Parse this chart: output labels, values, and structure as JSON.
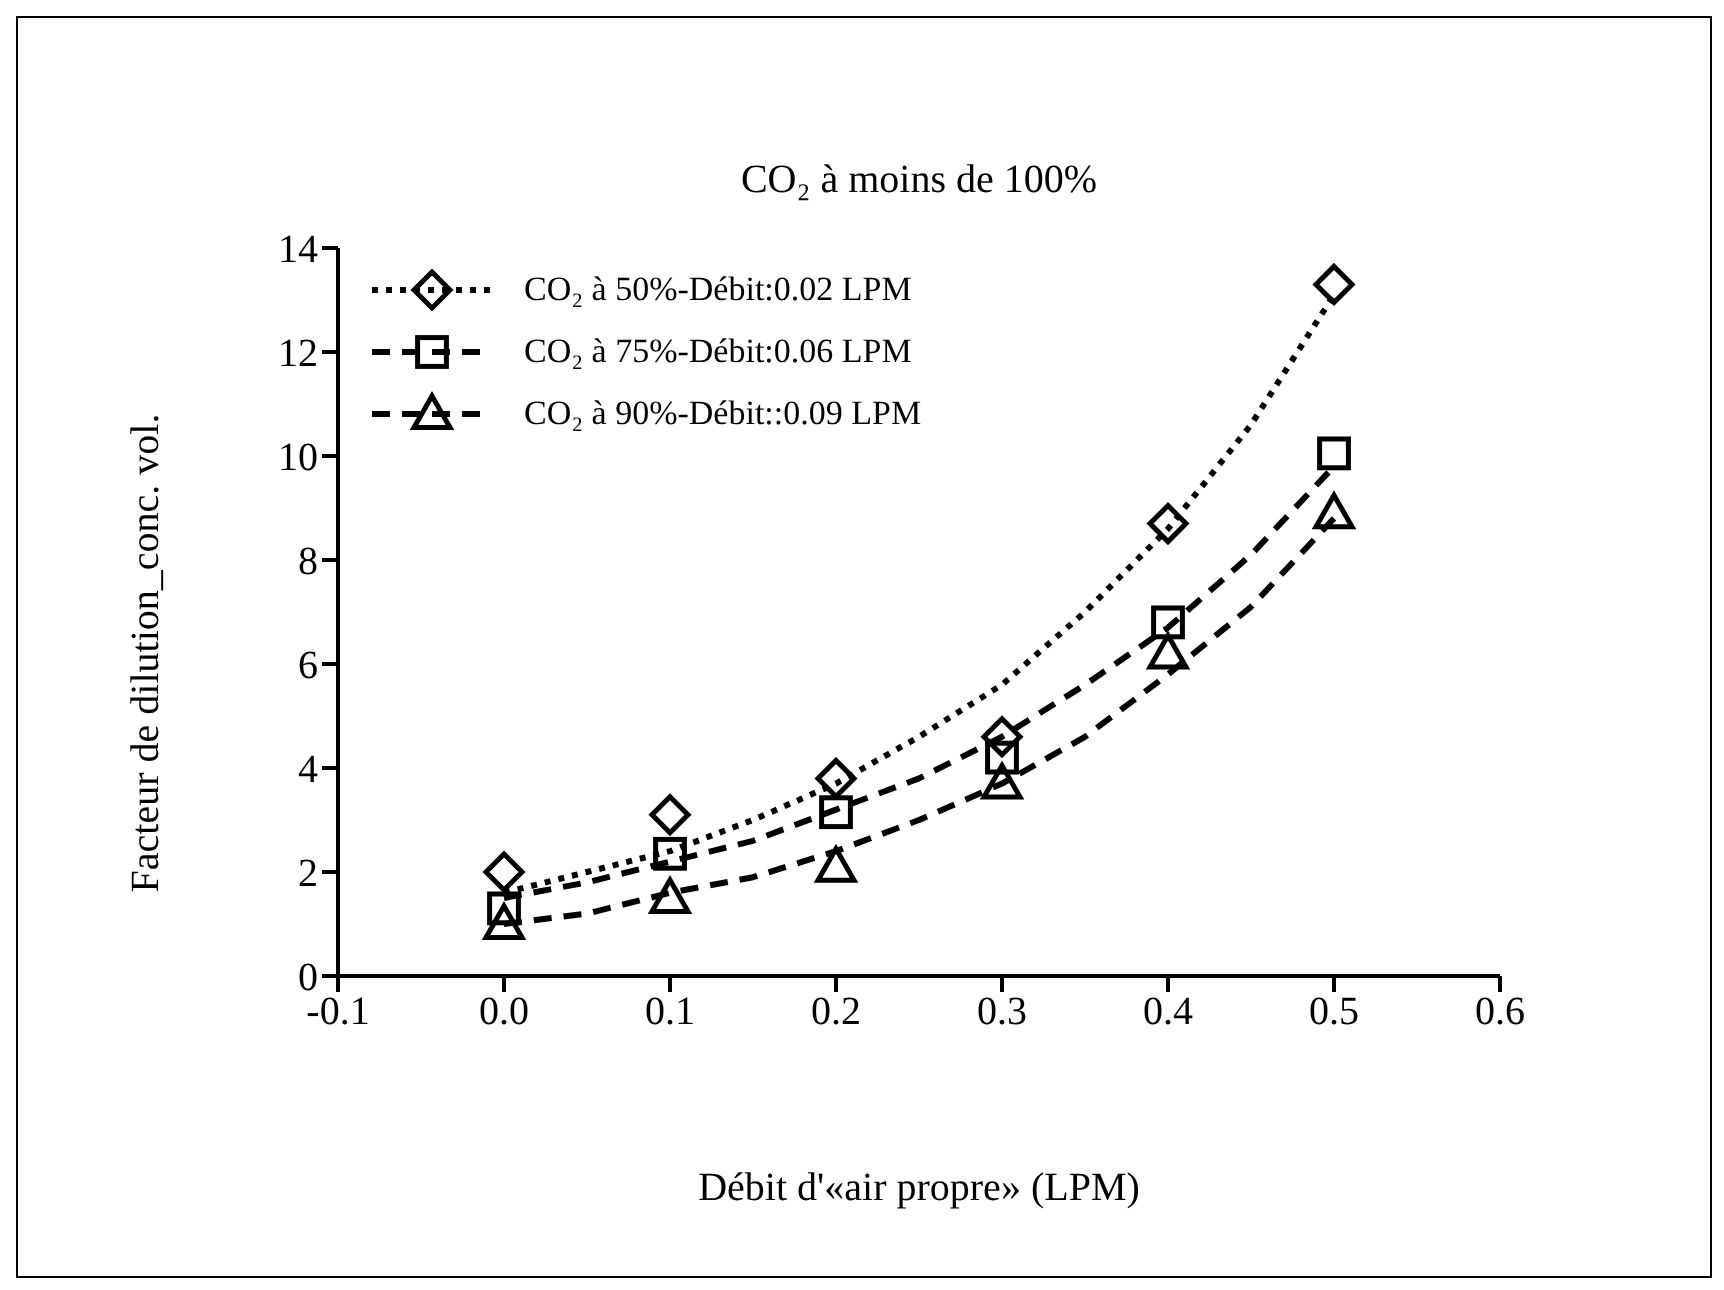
{
  "chart_data": {
    "type": "scatter",
    "title": "CO₂ à moins de 100%",
    "xlabel": "Débit d'«air propre» (LPM)",
    "ylabel": "Facteur de dilution_conc. vol.",
    "xlim": [
      -0.1,
      0.6
    ],
    "xticks": [
      -0.1,
      {
        "value": 0,
        "label": "0.0"
      },
      0.1,
      0.2,
      0.3,
      0.4,
      0.5,
      0.6
    ],
    "ylim": [
      0,
      14
    ],
    "yticks": [
      0,
      2,
      4,
      6,
      8,
      10,
      12,
      14
    ],
    "grid": false,
    "legend": "top left",
    "series": [
      {
        "name": "CO₂ à 50%-Débit:0.02 LPM",
        "marker": "diamond",
        "color": "#000000",
        "x": [
          0,
          0.1,
          0.2,
          0.3,
          0.4,
          0.5
        ],
        "values": [
          2.0,
          3.1,
          3.8,
          4.6,
          8.7,
          13.3
        ]
      },
      {
        "name": "CO₂ à 75%-Débit:0.06 LPM",
        "marker": "square",
        "color": "#000000",
        "x": [
          0,
          0.1,
          0.2,
          0.3,
          0.4,
          0.5
        ],
        "values": [
          1.3,
          2.35,
          3.15,
          4.2,
          6.8,
          10.05
        ]
      },
      {
        "name": "CO₂ à 90%-Débit::0.09 LPM",
        "marker": "triangle",
        "color": "#000000",
        "x": [
          0,
          0.1,
          0.2,
          0.3,
          0.4,
          0.5
        ],
        "values": [
          1.0,
          1.5,
          2.1,
          3.7,
          6.2,
          8.9
        ]
      },
      {
        "type": "line",
        "marker": "none",
        "line_style": "dotted",
        "color": "#000000",
        "x": [
          0,
          0.05,
          0.1,
          0.15,
          0.2,
          0.25,
          0.3,
          0.35,
          0.4,
          0.45,
          0.5
        ],
        "values": [
          1.6,
          2.0,
          2.4,
          3.0,
          3.7,
          4.6,
          5.6,
          7.0,
          8.6,
          10.6,
          13.1
        ]
      },
      {
        "type": "line",
        "marker": "none",
        "line_style": "dashed",
        "color": "#000000",
        "x": [
          0,
          0.05,
          0.1,
          0.15,
          0.2,
          0.25,
          0.3,
          0.35,
          0.4,
          0.45,
          0.5
        ],
        "values": [
          1.5,
          1.8,
          2.2,
          2.6,
          3.2,
          3.8,
          4.6,
          5.6,
          6.7,
          8.1,
          9.8
        ]
      },
      {
        "type": "line",
        "marker": "none",
        "line_style": "dashed",
        "color": "#000000",
        "x": [
          0,
          0.05,
          0.1,
          0.15,
          0.2,
          0.25,
          0.3,
          0.35,
          0.4,
          0.45,
          0.5
        ],
        "values": [
          1.0,
          1.2,
          1.6,
          1.9,
          2.4,
          3.0,
          3.7,
          4.6,
          5.8,
          7.1,
          8.8
        ]
      }
    ]
  }
}
